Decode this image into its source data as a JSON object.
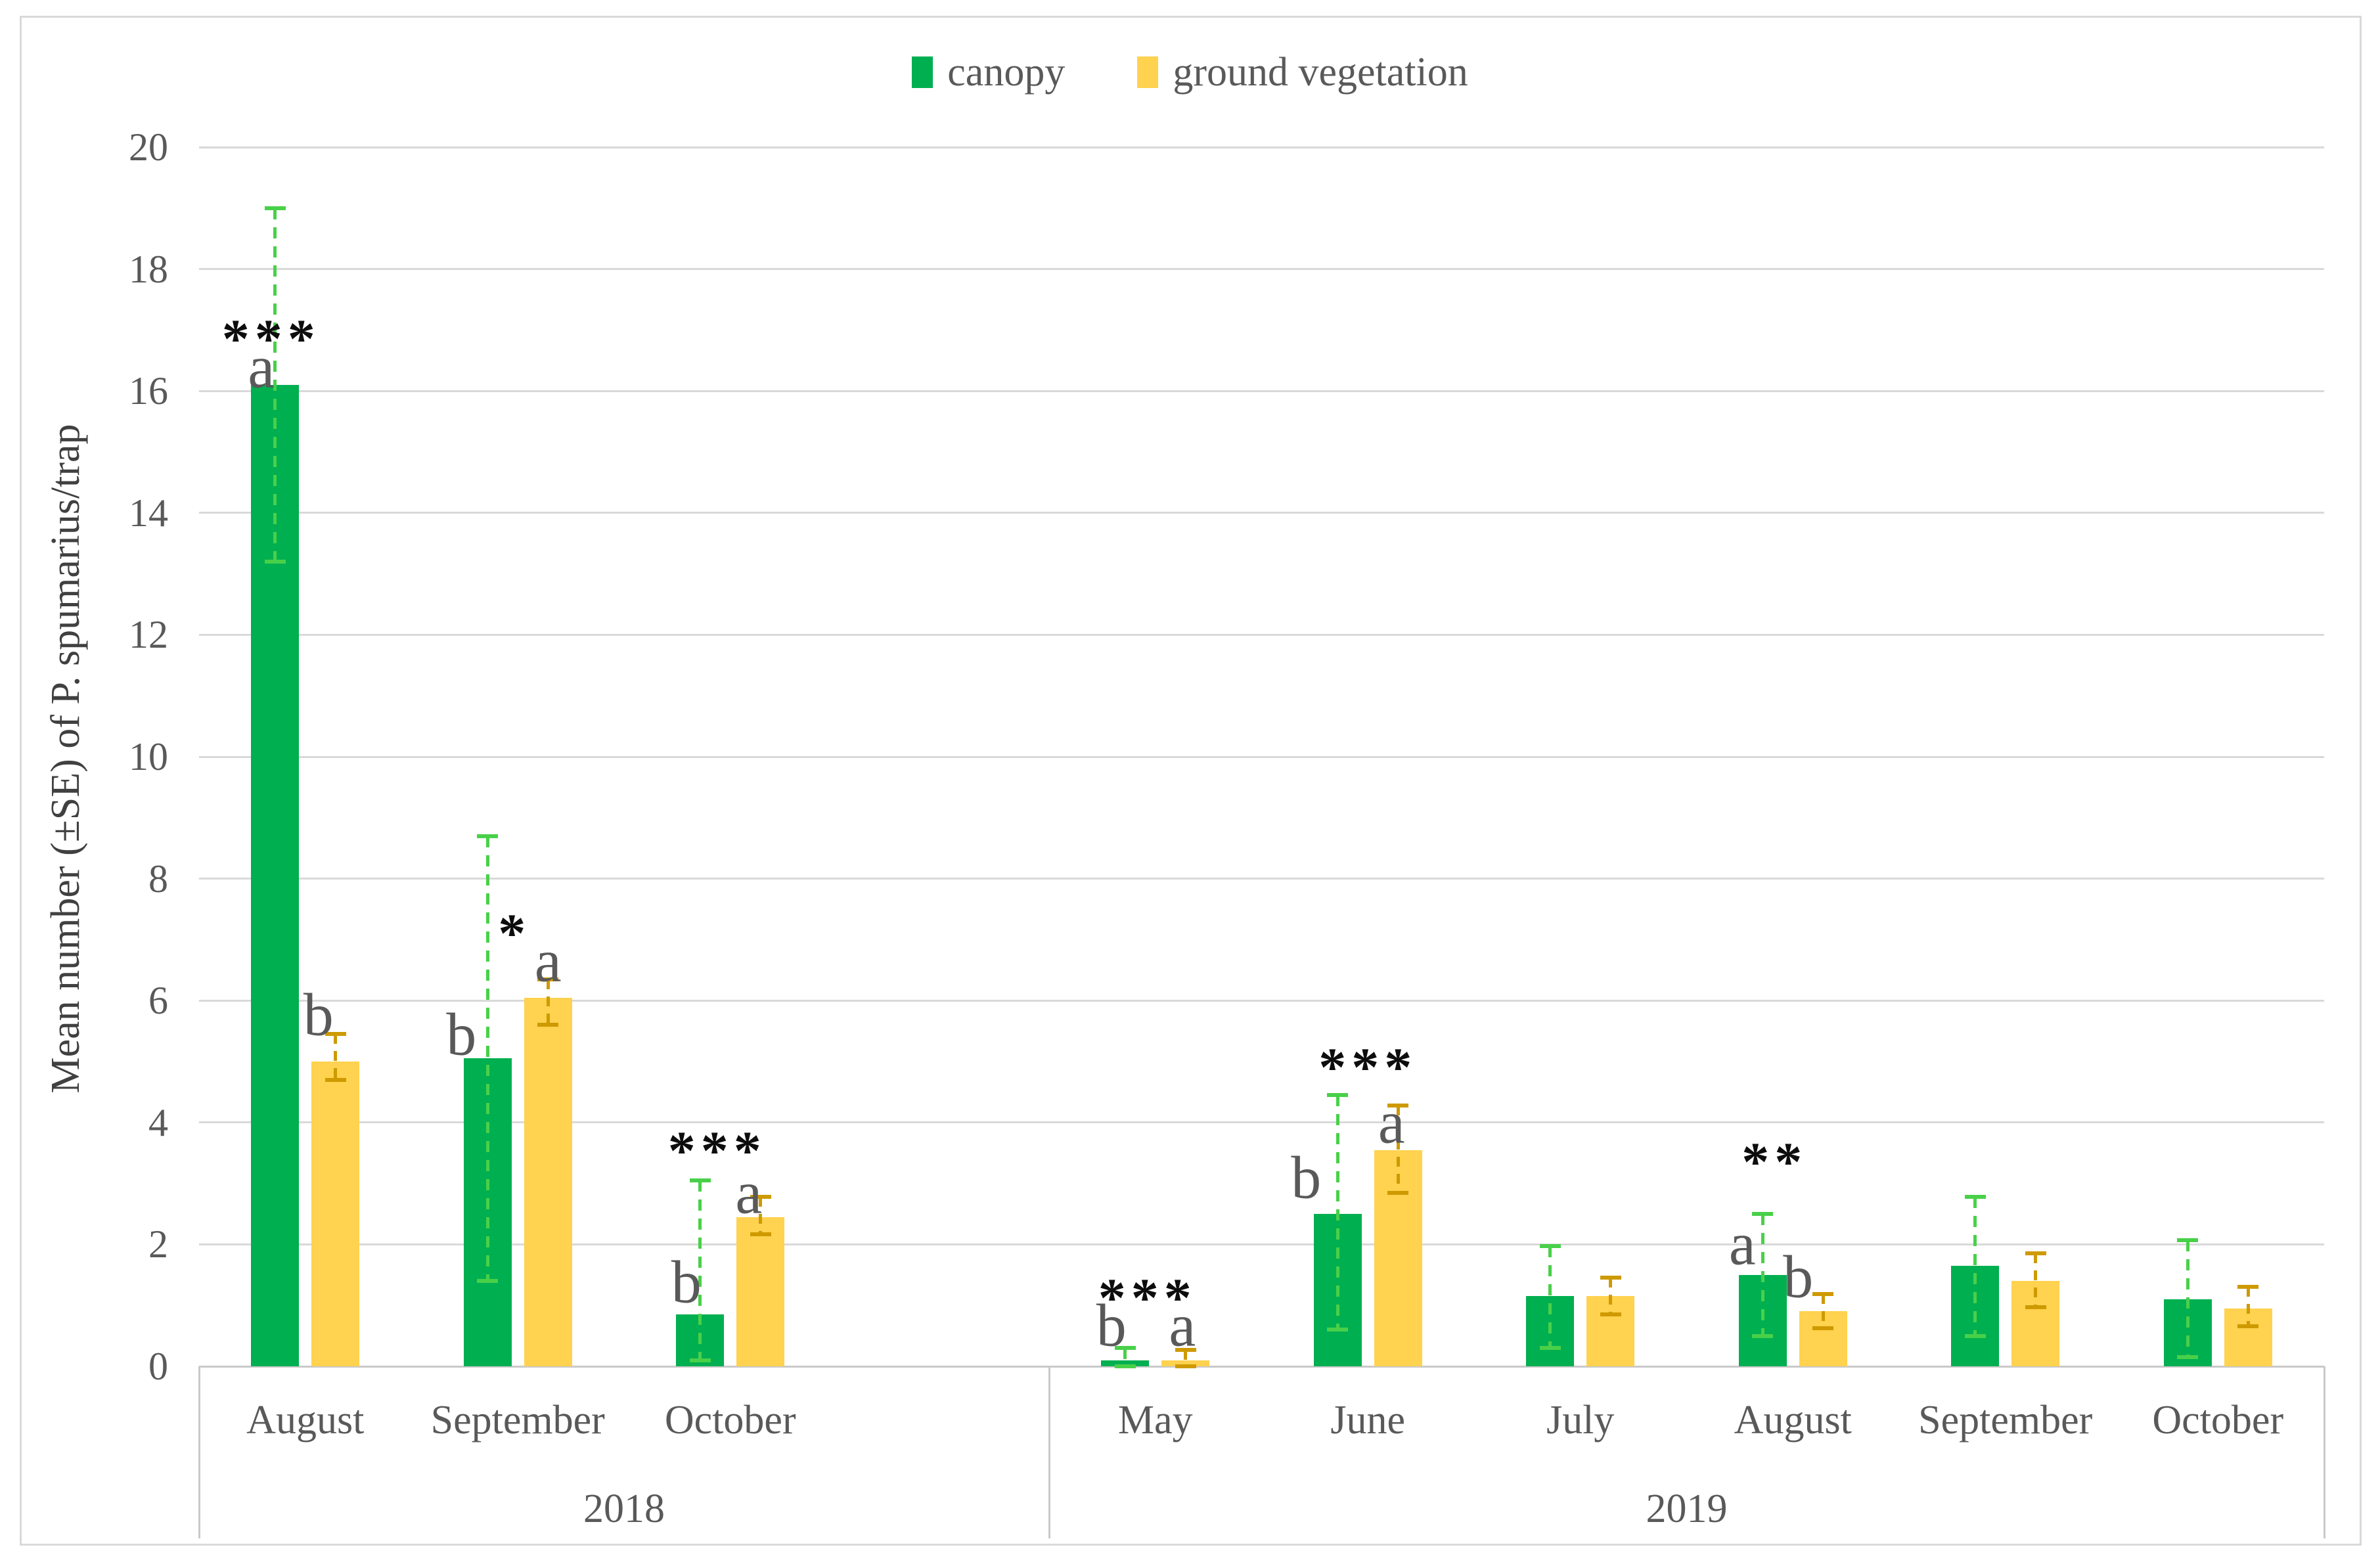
{
  "figure": {
    "background": "#FFFFFF",
    "border_color": "#D9D9D9"
  },
  "legend": {
    "items": [
      {
        "label": "canopy",
        "color": "#00AF50"
      },
      {
        "label": "ground vegetation",
        "color": "#FFD24F"
      }
    ]
  },
  "y_axis": {
    "title": "Mean number (±SE) of P. spumarius/trap",
    "ticks": [
      "0",
      "2",
      "4",
      "6",
      "8",
      "10",
      "12",
      "14",
      "16",
      "18",
      "20"
    ]
  },
  "colors": {
    "canopy_bar": "#00AF50",
    "ground_bar": "#FFD24F",
    "canopy_error": "#49D049",
    "ground_error": "#CE9A00",
    "gridline": "#D9D9D9",
    "axis_line": "#C9C9C9",
    "text": "#595959",
    "sig_text": "#0D0D0D"
  },
  "chart_data": {
    "type": "bar",
    "title": "",
    "ylabel": "Mean number (±SE) of P. spumarius/trap",
    "ylim": [
      0,
      20
    ],
    "gridline_step": 2,
    "grid": true,
    "legend_position": "top-center",
    "series": [
      "canopy",
      "ground vegetation"
    ],
    "groups": [
      {
        "year": "2018",
        "slots": 4,
        "months": [
          {
            "label": "August",
            "canopy": {
              "value": 16.1,
              "err": [
                13.2,
                19.0
              ],
              "letter": "a",
              "letter_dx": -21,
              "letter_y": 16.35
            },
            "ground": {
              "value": 5.0,
              "err": [
                4.7,
                5.45
              ],
              "letter": "b",
              "letter_dx": -26,
              "letter_y": 5.72
            },
            "sig": {
              "text": "***",
              "dx": -52,
              "y": 17.05
            }
          },
          {
            "label": "September",
            "canopy": {
              "value": 5.05,
              "err": [
                1.4,
                8.7
              ],
              "letter": "b",
              "letter_dx": -40,
              "letter_y": 5.4
            },
            "ground": {
              "value": 6.05,
              "err": [
                5.6,
                6.35
              ],
              "letter": "a",
              "letter_dx": 0,
              "letter_y": 6.61
            },
            "sig": {
              "text": "*",
              "dx": -5,
              "y": 7.3
            }
          },
          {
            "label": "October",
            "canopy": {
              "value": 0.85,
              "err": [
                0.1,
                3.05
              ],
              "letter": "b",
              "letter_dx": -21,
              "letter_y": 1.34
            },
            "ground": {
              "value": 2.45,
              "err": [
                2.17,
                2.78
              ],
              "letter": "a",
              "letter_dx": -18,
              "letter_y": 2.8
            },
            "sig": {
              "text": "***",
              "dx": -20,
              "y": 3.73
            }
          }
        ]
      },
      {
        "year": "2019",
        "slots": 6,
        "months": [
          {
            "label": "May",
            "canopy": {
              "value": 0.1,
              "err": [
                0.0,
                0.3
              ],
              "letter": "b",
              "letter_dx": -21,
              "letter_y": 0.62
            },
            "ground": {
              "value": 0.1,
              "err": [
                0.0,
                0.27
              ],
              "letter": "a",
              "letter_dx": -5,
              "letter_y": 0.62
            },
            "sig": {
              "text": "***",
              "dx": -12,
              "y": 1.31
            }
          },
          {
            "label": "June",
            "canopy": {
              "value": 2.5,
              "err": [
                0.6,
                4.45
              ],
              "letter": "b",
              "letter_dx": -48,
              "letter_y": 3.05
            },
            "ground": {
              "value": 3.55,
              "err": [
                2.85,
                4.28
              ],
              "letter": "a",
              "letter_dx": -10,
              "letter_y": 3.95
            },
            "sig": {
              "text": "***",
              "dx": 0,
              "y": 5.1
            }
          },
          {
            "label": "July",
            "canopy": {
              "value": 1.15,
              "err": [
                0.3,
                1.97
              ],
              "letter": null
            },
            "ground": {
              "value": 1.15,
              "err": [
                0.85,
                1.45
              ],
              "letter": null
            },
            "sig": null
          },
          {
            "label": "August",
            "canopy": {
              "value": 1.5,
              "err": [
                0.5,
                2.5
              ],
              "letter": "a",
              "letter_dx": -31,
              "letter_y": 1.96
            },
            "ground": {
              "value": 0.9,
              "err": [
                0.62,
                1.18
              ],
              "letter": "b",
              "letter_dx": -38,
              "letter_y": 1.42
            },
            "sig": {
              "text": "**",
              "dx": -28,
              "y": 3.55
            }
          },
          {
            "label": "September",
            "canopy": {
              "value": 1.65,
              "err": [
                0.5,
                2.78
              ],
              "letter": null
            },
            "ground": {
              "value": 1.4,
              "err": [
                0.97,
                1.85
              ],
              "letter": null
            },
            "sig": null
          },
          {
            "label": "October",
            "canopy": {
              "value": 1.1,
              "err": [
                0.15,
                2.07
              ],
              "letter": null
            },
            "ground": {
              "value": 0.95,
              "err": [
                0.66,
                1.3
              ],
              "letter": null
            },
            "sig": null
          }
        ]
      }
    ]
  }
}
